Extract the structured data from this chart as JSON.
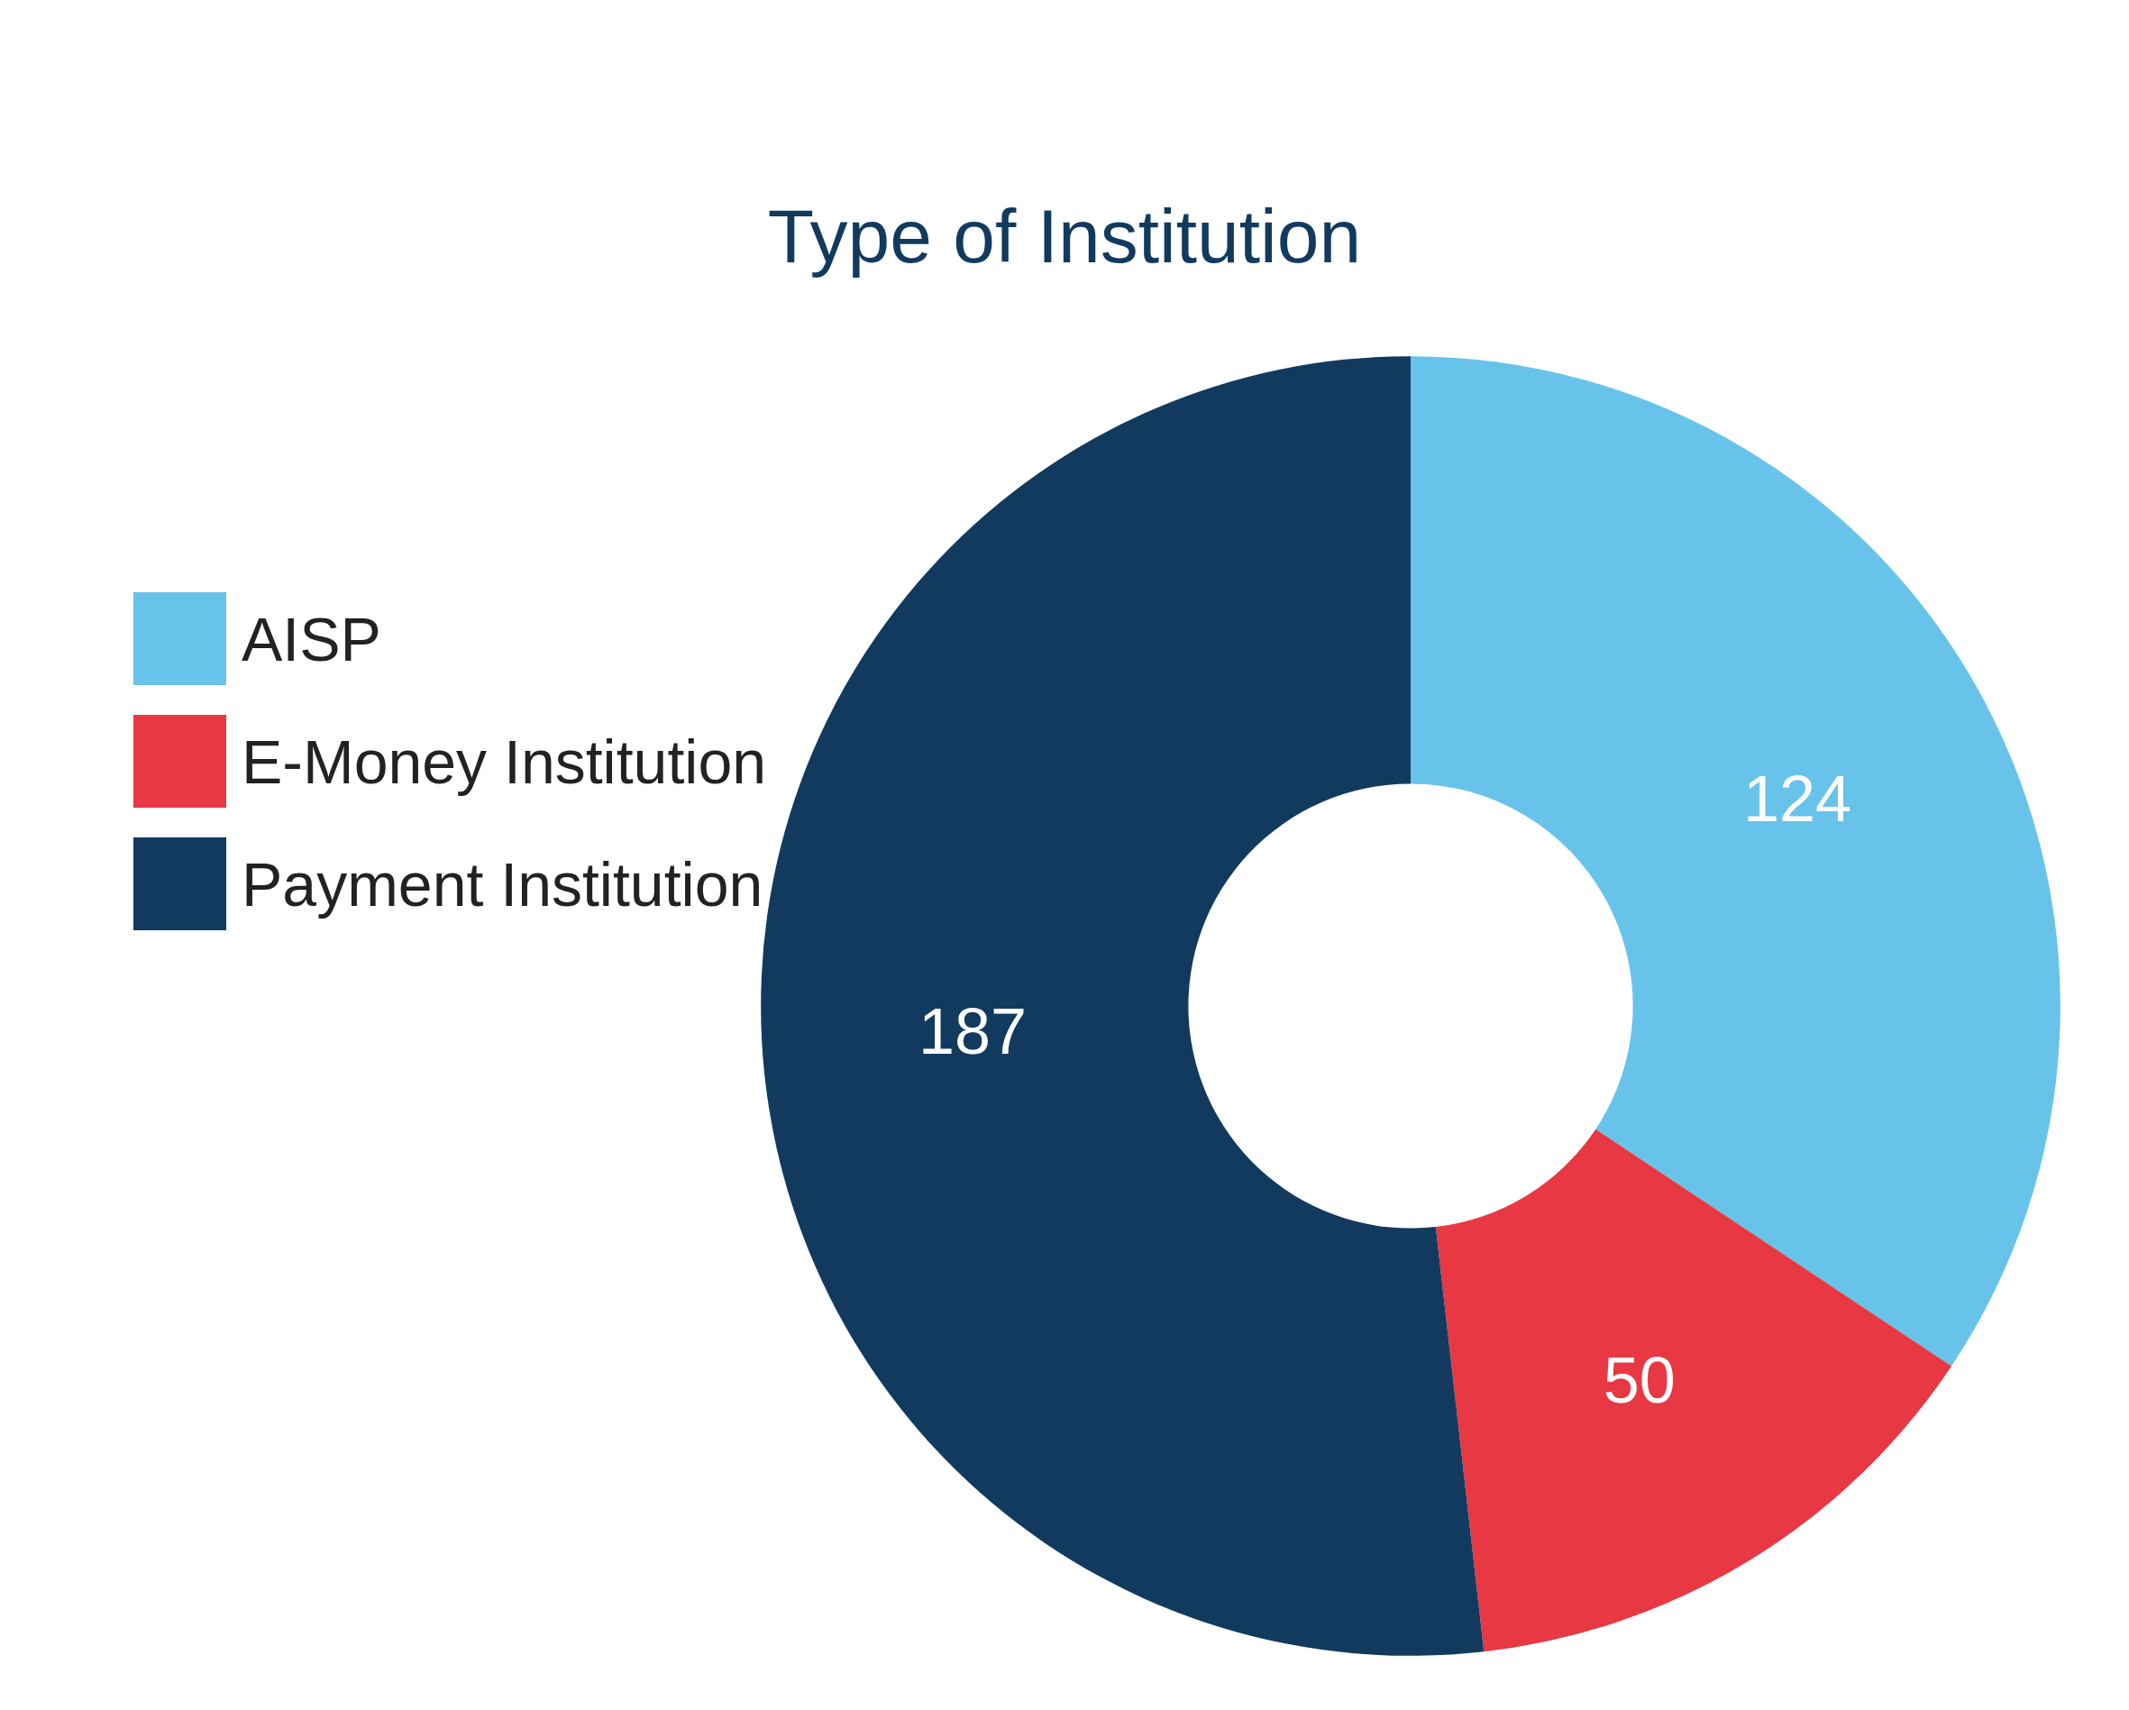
{
  "chart_data": {
    "type": "donut",
    "title": "Type of Institution",
    "categories": [
      "AISP",
      "E-Money Institution",
      "Payment Institution"
    ],
    "values": [
      124,
      50,
      187
    ],
    "colors": [
      "#68c3ea",
      "#e73843",
      "#123a5f"
    ],
    "data_labels": true,
    "legend": "left"
  }
}
